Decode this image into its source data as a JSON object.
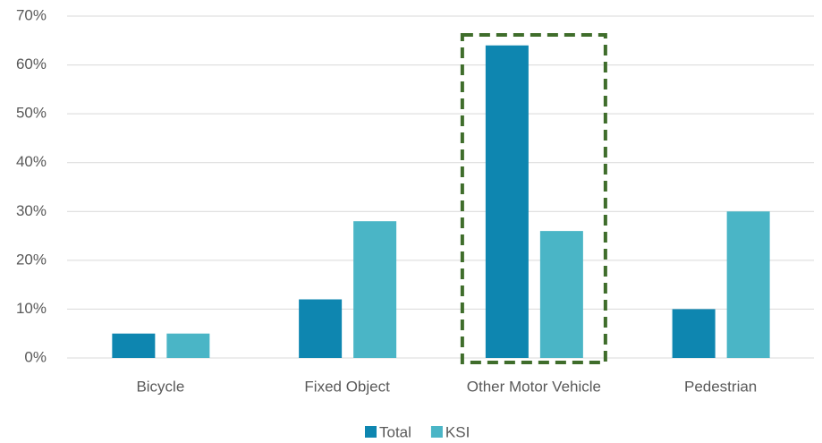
{
  "chart_data": {
    "type": "bar",
    "categories": [
      "Bicycle",
      "Fixed Object",
      "Other Motor Vehicle",
      "Pedestrian"
    ],
    "series": [
      {
        "name": "Total",
        "color": "#0e86b0",
        "values": [
          5,
          12,
          64,
          10
        ]
      },
      {
        "name": "KSI",
        "color": "#4ab5c6",
        "values": [
          5,
          28,
          26,
          30
        ]
      }
    ],
    "ylim": [
      0,
      70
    ],
    "yticks": [
      {
        "value": 0,
        "label": "0%"
      },
      {
        "value": 10,
        "label": "10%"
      },
      {
        "value": 20,
        "label": "20%"
      },
      {
        "value": 30,
        "label": "30%"
      },
      {
        "value": 40,
        "label": "40%"
      },
      {
        "value": 50,
        "label": "50%"
      },
      {
        "value": 60,
        "label": "60%"
      },
      {
        "value": 70,
        "label": "70%"
      }
    ],
    "grid": true,
    "legend": "bottom"
  }
}
